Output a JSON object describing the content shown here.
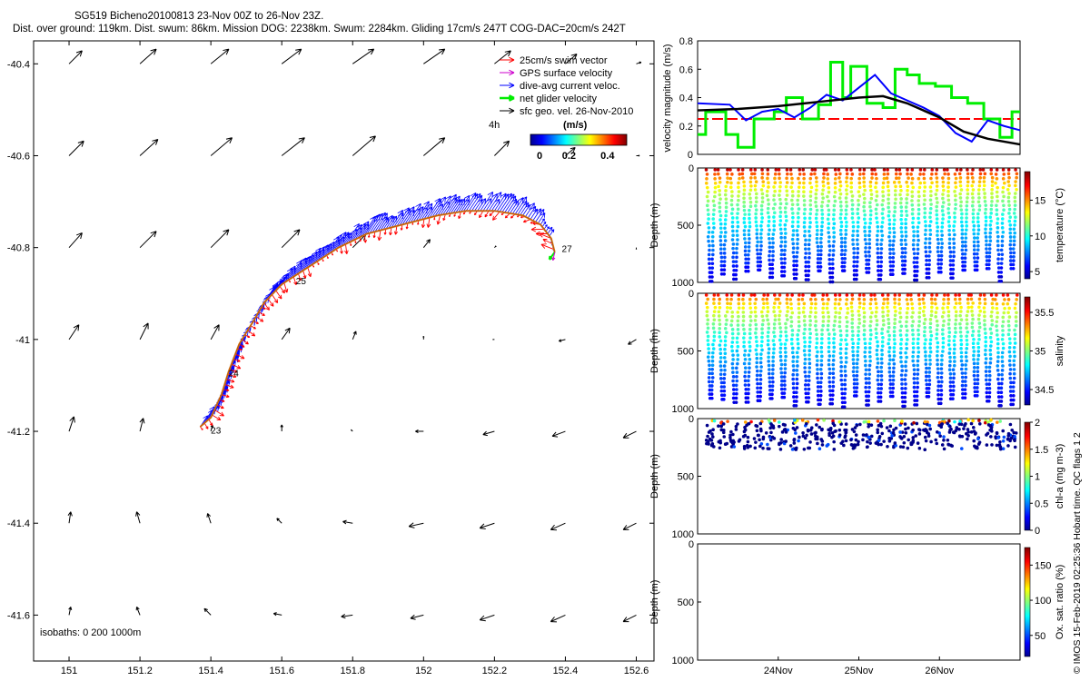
{
  "header": {
    "title_line1": "SG519 Bicheno20100813 23-Nov 00Z to 26-Nov 23Z.",
    "title_line2": "Dist. over ground: 119km. Dist. swum: 86km. Mission DOG: 2238km. Swum: 2284km. Gliding 17cm/s 247T COG-DAC=20cm/s 242T"
  },
  "footer": {
    "side_note": "© IMOS 15-Feb-2019 02:25:36 Hobart time. QC flags 1  2"
  },
  "colors": {
    "swim": "#ff0000",
    "gps": "#cc00cc",
    "dac": "#0000ff",
    "net": "#00ee00",
    "geo": "#000000",
    "threshold": "#ff0000"
  },
  "chart_data": [
    {
      "id": "map",
      "type": "scatter",
      "xlim": [
        150.9,
        152.65
      ],
      "ylim": [
        -41.7,
        -40.35
      ],
      "xticks": [
        "151",
        "151.2",
        "151.4",
        "151.6",
        "151.8",
        "152",
        "152.2",
        "152.4",
        "152.6"
      ],
      "yticks": [
        "-40.4",
        "-40.6",
        "-40.8",
        "-41",
        "-41.2",
        "-41.4",
        "-41.6"
      ],
      "legend": {
        "items": [
          "25cm/s swim vector",
          "GPS surface velocity",
          "dive-avg current veloc.",
          "net glider velocity",
          "sfc geo. vel. 26-Nov-2010"
        ],
        "interval": "4h",
        "colorbar_label": "(m/s)",
        "colorbar_ticks": [
          "0",
          "0.2",
          "0.4"
        ]
      },
      "isobaths_label": "isobaths: 0   200  1000m",
      "track_labels": [
        {
          "text": "23",
          "lon": 151.4,
          "lat": -41.205
        },
        {
          "text": "24",
          "lon": 151.45,
          "lat": -41.08
        },
        {
          "text": "25",
          "lon": 151.64,
          "lat": -40.88
        },
        {
          "text": "27",
          "lon": 152.39,
          "lat": -40.81
        }
      ],
      "track": [
        [
          151.37,
          -41.19
        ],
        [
          151.4,
          -41.17
        ],
        [
          151.43,
          -41.12
        ],
        [
          151.45,
          -41.07
        ],
        [
          151.48,
          -41.01
        ],
        [
          151.52,
          -40.96
        ],
        [
          151.55,
          -40.92
        ],
        [
          151.6,
          -40.88
        ],
        [
          151.64,
          -40.86
        ],
        [
          151.7,
          -40.83
        ],
        [
          151.76,
          -40.8
        ],
        [
          151.84,
          -40.77
        ],
        [
          151.94,
          -40.75
        ],
        [
          152.04,
          -40.73
        ],
        [
          152.12,
          -40.72
        ],
        [
          152.2,
          -40.72
        ],
        [
          152.28,
          -40.73
        ],
        [
          152.33,
          -40.75
        ],
        [
          152.36,
          -40.78
        ],
        [
          152.37,
          -40.81
        ]
      ],
      "geo_vectors": [
        [
          151.0,
          -40.4,
          0.08,
          0.08
        ],
        [
          151.2,
          -40.4,
          0.1,
          0.09
        ],
        [
          151.4,
          -40.4,
          0.11,
          0.09
        ],
        [
          151.6,
          -40.4,
          0.12,
          0.09
        ],
        [
          151.8,
          -40.4,
          0.13,
          0.09
        ],
        [
          152.0,
          -40.4,
          0.13,
          0.09
        ],
        [
          152.2,
          -40.4,
          0.1,
          0.08
        ],
        [
          152.4,
          -40.4,
          0.07,
          0.06
        ],
        [
          152.6,
          -40.4,
          0.03,
          0.01
        ],
        [
          151.0,
          -40.6,
          0.09,
          0.09
        ],
        [
          151.2,
          -40.6,
          0.11,
          0.1
        ],
        [
          151.4,
          -40.6,
          0.13,
          0.11
        ],
        [
          151.6,
          -40.6,
          0.14,
          0.11
        ],
        [
          151.8,
          -40.6,
          0.14,
          0.12
        ],
        [
          152.0,
          -40.6,
          0.13,
          0.11
        ],
        [
          152.2,
          -40.6,
          0.09,
          0.09
        ],
        [
          152.4,
          -40.6,
          0.06,
          0.05
        ],
        [
          152.6,
          -40.6,
          0.02,
          0.0
        ],
        [
          151.0,
          -40.8,
          0.08,
          0.09
        ],
        [
          151.2,
          -40.8,
          0.1,
          0.1
        ],
        [
          151.4,
          -40.8,
          0.11,
          0.11
        ],
        [
          151.6,
          -40.8,
          0.11,
          0.11
        ],
        [
          151.8,
          -40.8,
          0.08,
          0.08
        ],
        [
          152.0,
          -40.8,
          0.04,
          0.05
        ],
        [
          152.2,
          -40.8,
          0.01,
          0.01
        ],
        [
          152.6,
          -40.8,
          0.0,
          -0.01
        ],
        [
          151.0,
          -41.0,
          0.06,
          0.09
        ],
        [
          151.2,
          -41.0,
          0.05,
          0.1
        ],
        [
          151.4,
          -41.0,
          0.05,
          0.09
        ],
        [
          151.6,
          -41.0,
          0.05,
          0.07
        ],
        [
          151.8,
          -41.0,
          0.02,
          0.05
        ],
        [
          152.0,
          -41.0,
          0.0,
          0.02
        ],
        [
          152.2,
          -41.0,
          -0.01,
          0.0
        ],
        [
          152.4,
          -41.0,
          -0.04,
          -0.01
        ],
        [
          152.6,
          -41.0,
          -0.05,
          -0.03
        ],
        [
          151.0,
          -41.2,
          0.03,
          0.09
        ],
        [
          151.2,
          -41.2,
          0.02,
          0.08
        ],
        [
          151.4,
          -41.2,
          0.01,
          0.04
        ],
        [
          151.6,
          -41.2,
          0.0,
          0.04
        ],
        [
          151.8,
          -41.2,
          -0.01,
          0.01
        ],
        [
          152.0,
          -41.2,
          -0.05,
          0.0
        ],
        [
          152.2,
          -41.2,
          -0.07,
          -0.02
        ],
        [
          152.4,
          -41.2,
          -0.08,
          -0.03
        ],
        [
          152.6,
          -41.2,
          -0.08,
          -0.04
        ],
        [
          151.0,
          -41.4,
          0.01,
          0.07
        ],
        [
          151.2,
          -41.4,
          -0.02,
          0.07
        ],
        [
          151.4,
          -41.4,
          -0.02,
          0.06
        ],
        [
          151.6,
          -41.4,
          -0.03,
          0.03
        ],
        [
          151.8,
          -41.4,
          -0.06,
          0.01
        ],
        [
          152.0,
          -41.4,
          -0.09,
          -0.02
        ],
        [
          152.2,
          -41.4,
          -0.09,
          -0.03
        ],
        [
          152.4,
          -41.4,
          -0.09,
          -0.04
        ],
        [
          152.6,
          -41.4,
          -0.08,
          -0.04
        ],
        [
          151.0,
          -41.6,
          0.01,
          0.05
        ],
        [
          151.2,
          -41.6,
          -0.02,
          0.05
        ],
        [
          151.4,
          -41.6,
          -0.04,
          0.04
        ],
        [
          151.6,
          -41.6,
          -0.05,
          0.01
        ],
        [
          151.8,
          -41.6,
          -0.07,
          -0.01
        ],
        [
          152.0,
          -41.6,
          -0.08,
          -0.02
        ],
        [
          152.2,
          -41.6,
          -0.09,
          -0.03
        ],
        [
          152.4,
          -41.6,
          -0.09,
          -0.04
        ],
        [
          152.6,
          -41.6,
          -0.08,
          -0.04
        ]
      ]
    },
    {
      "id": "velocity",
      "type": "line",
      "ylabel": "velocity magnitude (m/s)",
      "xlim": [
        23.0,
        27.0
      ],
      "ylim": [
        0,
        0.8
      ],
      "yticks": [
        "0",
        "0.2",
        "0.4",
        "0.6",
        "0.8"
      ],
      "threshold": 0.25,
      "series": [
        {
          "color": "#000000",
          "x": [
            23.0,
            23.5,
            24.0,
            24.5,
            25.0,
            25.3,
            25.6,
            26.0,
            26.3,
            26.6,
            27.0
          ],
          "values": [
            0.31,
            0.32,
            0.34,
            0.37,
            0.4,
            0.41,
            0.36,
            0.26,
            0.16,
            0.11,
            0.07
          ]
        },
        {
          "color": "#0000ff",
          "x": [
            23.0,
            23.4,
            23.6,
            23.8,
            24.0,
            24.2,
            24.4,
            24.6,
            24.8,
            25.0,
            25.2,
            25.4,
            25.6,
            25.8,
            26.0,
            26.2,
            26.4,
            26.6,
            26.8,
            27.0
          ],
          "values": [
            0.36,
            0.35,
            0.24,
            0.3,
            0.32,
            0.26,
            0.33,
            0.42,
            0.38,
            0.47,
            0.56,
            0.43,
            0.38,
            0.33,
            0.27,
            0.15,
            0.09,
            0.24,
            0.2,
            0.17
          ]
        },
        {
          "color": "#00ee00",
          "x": [
            23.0,
            23.1,
            23.1,
            23.35,
            23.35,
            23.5,
            23.5,
            23.7,
            23.7,
            23.95,
            23.95,
            24.1,
            24.1,
            24.3,
            24.3,
            24.5,
            24.5,
            24.65,
            24.65,
            24.8,
            24.8,
            24.9,
            24.9,
            25.1,
            25.1,
            25.3,
            25.3,
            25.45,
            25.45,
            25.6,
            25.6,
            25.75,
            25.75,
            25.95,
            25.95,
            26.15,
            26.15,
            26.35,
            26.35,
            26.55,
            26.55,
            26.75,
            26.75,
            26.9,
            26.9,
            27.0
          ],
          "values": [
            0.14,
            0.14,
            0.3,
            0.3,
            0.14,
            0.14,
            0.05,
            0.05,
            0.25,
            0.25,
            0.3,
            0.3,
            0.4,
            0.4,
            0.25,
            0.25,
            0.35,
            0.35,
            0.65,
            0.65,
            0.4,
            0.4,
            0.62,
            0.62,
            0.36,
            0.36,
            0.33,
            0.33,
            0.6,
            0.6,
            0.56,
            0.56,
            0.5,
            0.5,
            0.48,
            0.48,
            0.4,
            0.4,
            0.36,
            0.36,
            0.25,
            0.25,
            0.12,
            0.12,
            0.3,
            0.3
          ]
        }
      ]
    },
    {
      "id": "temperature",
      "type": "scatter",
      "ylabel": "Depth (m)",
      "ylim": [
        0,
        1000
      ],
      "yticks": [
        "0",
        "500",
        "1000"
      ],
      "colorbar_label": "temperature (°C)",
      "colorbar_ticks": [
        "5",
        "10",
        "15"
      ],
      "colorbar_range": [
        4,
        19
      ],
      "surface_value": 18,
      "deep_value": 5,
      "dives": 26
    },
    {
      "id": "salinity",
      "type": "scatter",
      "ylabel": "Depth (m)",
      "ylim": [
        0,
        1000
      ],
      "yticks": [
        "0",
        "500",
        "1000"
      ],
      "colorbar_label": "salinity",
      "colorbar_ticks": [
        "34.5",
        "35",
        "35.5"
      ],
      "colorbar_range": [
        34.3,
        35.7
      ],
      "surface_value": 35.5,
      "deep_value": 34.4,
      "dives": 26
    },
    {
      "id": "chla",
      "type": "scatter",
      "ylabel": "Depth (m)",
      "ylim": [
        0,
        1000
      ],
      "yticks": [
        "0",
        "500",
        "1000"
      ],
      "colorbar_label": "chl-a (mg m-3)",
      "colorbar_ticks": [
        "0",
        "0.5",
        "1",
        "1.5",
        "2"
      ],
      "colorbar_range": [
        0,
        2
      ],
      "dives": 26
    },
    {
      "id": "oxygen",
      "type": "scatter",
      "ylabel": "Depth (m)",
      "ylim": [
        0,
        1000
      ],
      "yticks": [
        "0",
        "500",
        "1000"
      ],
      "colorbar_label": "Ox. sat. ratio (%)",
      "colorbar_ticks": [
        "50",
        "100",
        "150"
      ],
      "colorbar_range": [
        20,
        175
      ],
      "xticks": [
        "24Nov",
        "25Nov",
        "26Nov"
      ]
    }
  ]
}
